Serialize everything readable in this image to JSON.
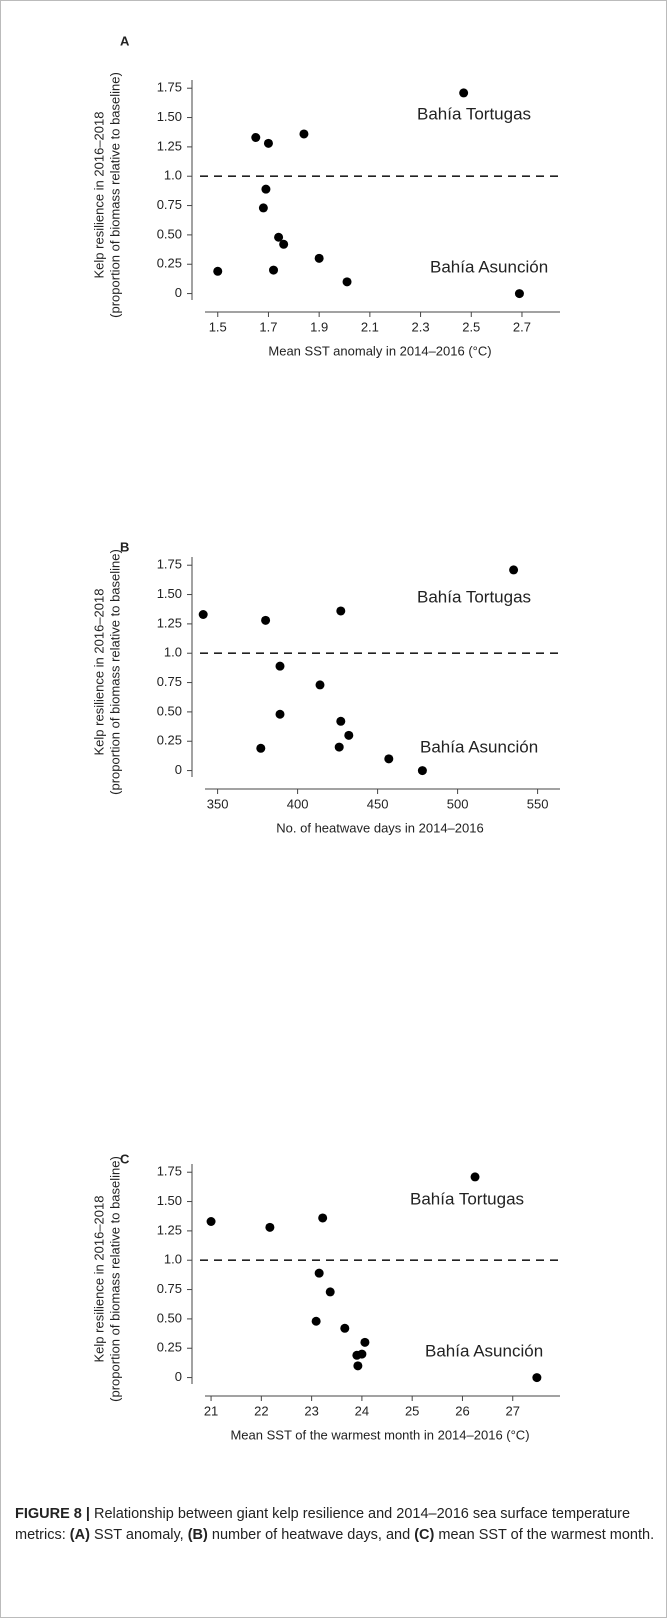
{
  "chart_data": [
    {
      "type": "scatter",
      "panel": "A",
      "xlabel": "Mean SST anomaly in 2014–2016 (°C)",
      "ylabel": [
        "Kelp resilience in 2016–2018",
        "(proportion of biomass relative to baseline)"
      ],
      "x": [
        1.5,
        1.69,
        1.65,
        1.68,
        1.7,
        1.72,
        1.74,
        1.76,
        1.84,
        1.9,
        2.01,
        2.47,
        2.69
      ],
      "y": [
        0.19,
        0.89,
        1.33,
        0.73,
        1.28,
        0.2,
        0.48,
        0.42,
        1.36,
        0.3,
        0.1,
        1.71,
        0.0
      ],
      "color": "#000000",
      "xlim": [
        1.43,
        2.85
      ],
      "ylim": [
        -0.14,
        1.82
      ],
      "xticks": [
        1.5,
        1.7,
        1.9,
        2.1,
        2.3,
        2.5,
        2.7
      ],
      "yticks": [
        0,
        0.25,
        {
          "value": 0.5,
          "label": "0.50"
        },
        0.75,
        {
          "value": 1,
          "label": "1.0"
        },
        1.25,
        {
          "value": 1.5,
          "label": "1.50"
        },
        1.75
      ],
      "hline": 1,
      "annotations": [
        "Bahía Tortugas",
        "Bahía Asunción"
      ]
    },
    {
      "type": "scatter",
      "panel": "B",
      "xlabel": "No. of heatwave days in 2014–2016",
      "ylabel": [
        "Kelp resilience in 2016–2018",
        "(proportion of biomass relative to baseline)"
      ],
      "x": [
        341,
        380,
        427,
        389,
        414,
        389,
        427,
        432,
        426,
        377,
        457,
        478,
        535
      ],
      "y": [
        1.33,
        1.28,
        1.36,
        0.89,
        0.73,
        0.48,
        0.42,
        0.3,
        0.2,
        0.19,
        0.1,
        0.0,
        1.71
      ],
      "color": "#000000",
      "xlim": [
        339,
        564
      ],
      "ylim": [
        -0.14,
        1.82
      ],
      "xticks": [
        350,
        400,
        450,
        500,
        550
      ],
      "yticks": [
        0,
        0.25,
        {
          "value": 0.5,
          "label": "0.50"
        },
        0.75,
        {
          "value": 1,
          "label": "1.0"
        },
        1.25,
        {
          "value": 1.5,
          "label": "1.50"
        },
        1.75
      ],
      "hline": 1,
      "annotations": [
        "Bahía Tortugas",
        "Bahía Asunción"
      ]
    },
    {
      "type": "scatter",
      "panel": "C",
      "xlabel": "Mean SST of the warmest month in 2014–2016 (°C)",
      "ylabel": [
        "Kelp resilience in 2016–2018",
        "(proportion of biomass relative to baseline)"
      ],
      "x": [
        21.0,
        22.17,
        23.22,
        23.15,
        23.37,
        23.09,
        23.66,
        24.06,
        24.0,
        23.9,
        23.92,
        26.25,
        27.48
      ],
      "y": [
        1.33,
        1.28,
        1.36,
        0.89,
        0.73,
        0.48,
        0.42,
        0.3,
        0.2,
        0.19,
        0.1,
        1.71,
        0.0
      ],
      "color": "#000000",
      "xlim": [
        20.78,
        27.94
      ],
      "ylim": [
        -0.14,
        1.82
      ],
      "xticks": [
        21,
        22,
        23,
        24,
        25,
        26,
        27
      ],
      "yticks": [
        0,
        0.25,
        {
          "value": 0.5,
          "label": "0.50"
        },
        0.75,
        {
          "value": 1,
          "label": "1.0"
        },
        1.25,
        {
          "value": 1.5,
          "label": "1.50"
        },
        1.75
      ],
      "hline": 1,
      "annotations": [
        "Bahía Tortugas",
        "Bahía Asunción"
      ]
    }
  ],
  "caption": [
    "FIGURE 8 |",
    " Relationship between giant kelp resilience and 2014–2016 sea surface temperature metrics: ",
    "(A)",
    " SST anomaly, ",
    "(B)",
    " number of heatwave days, and ",
    "(C)",
    " mean SST of the warmest month."
  ]
}
